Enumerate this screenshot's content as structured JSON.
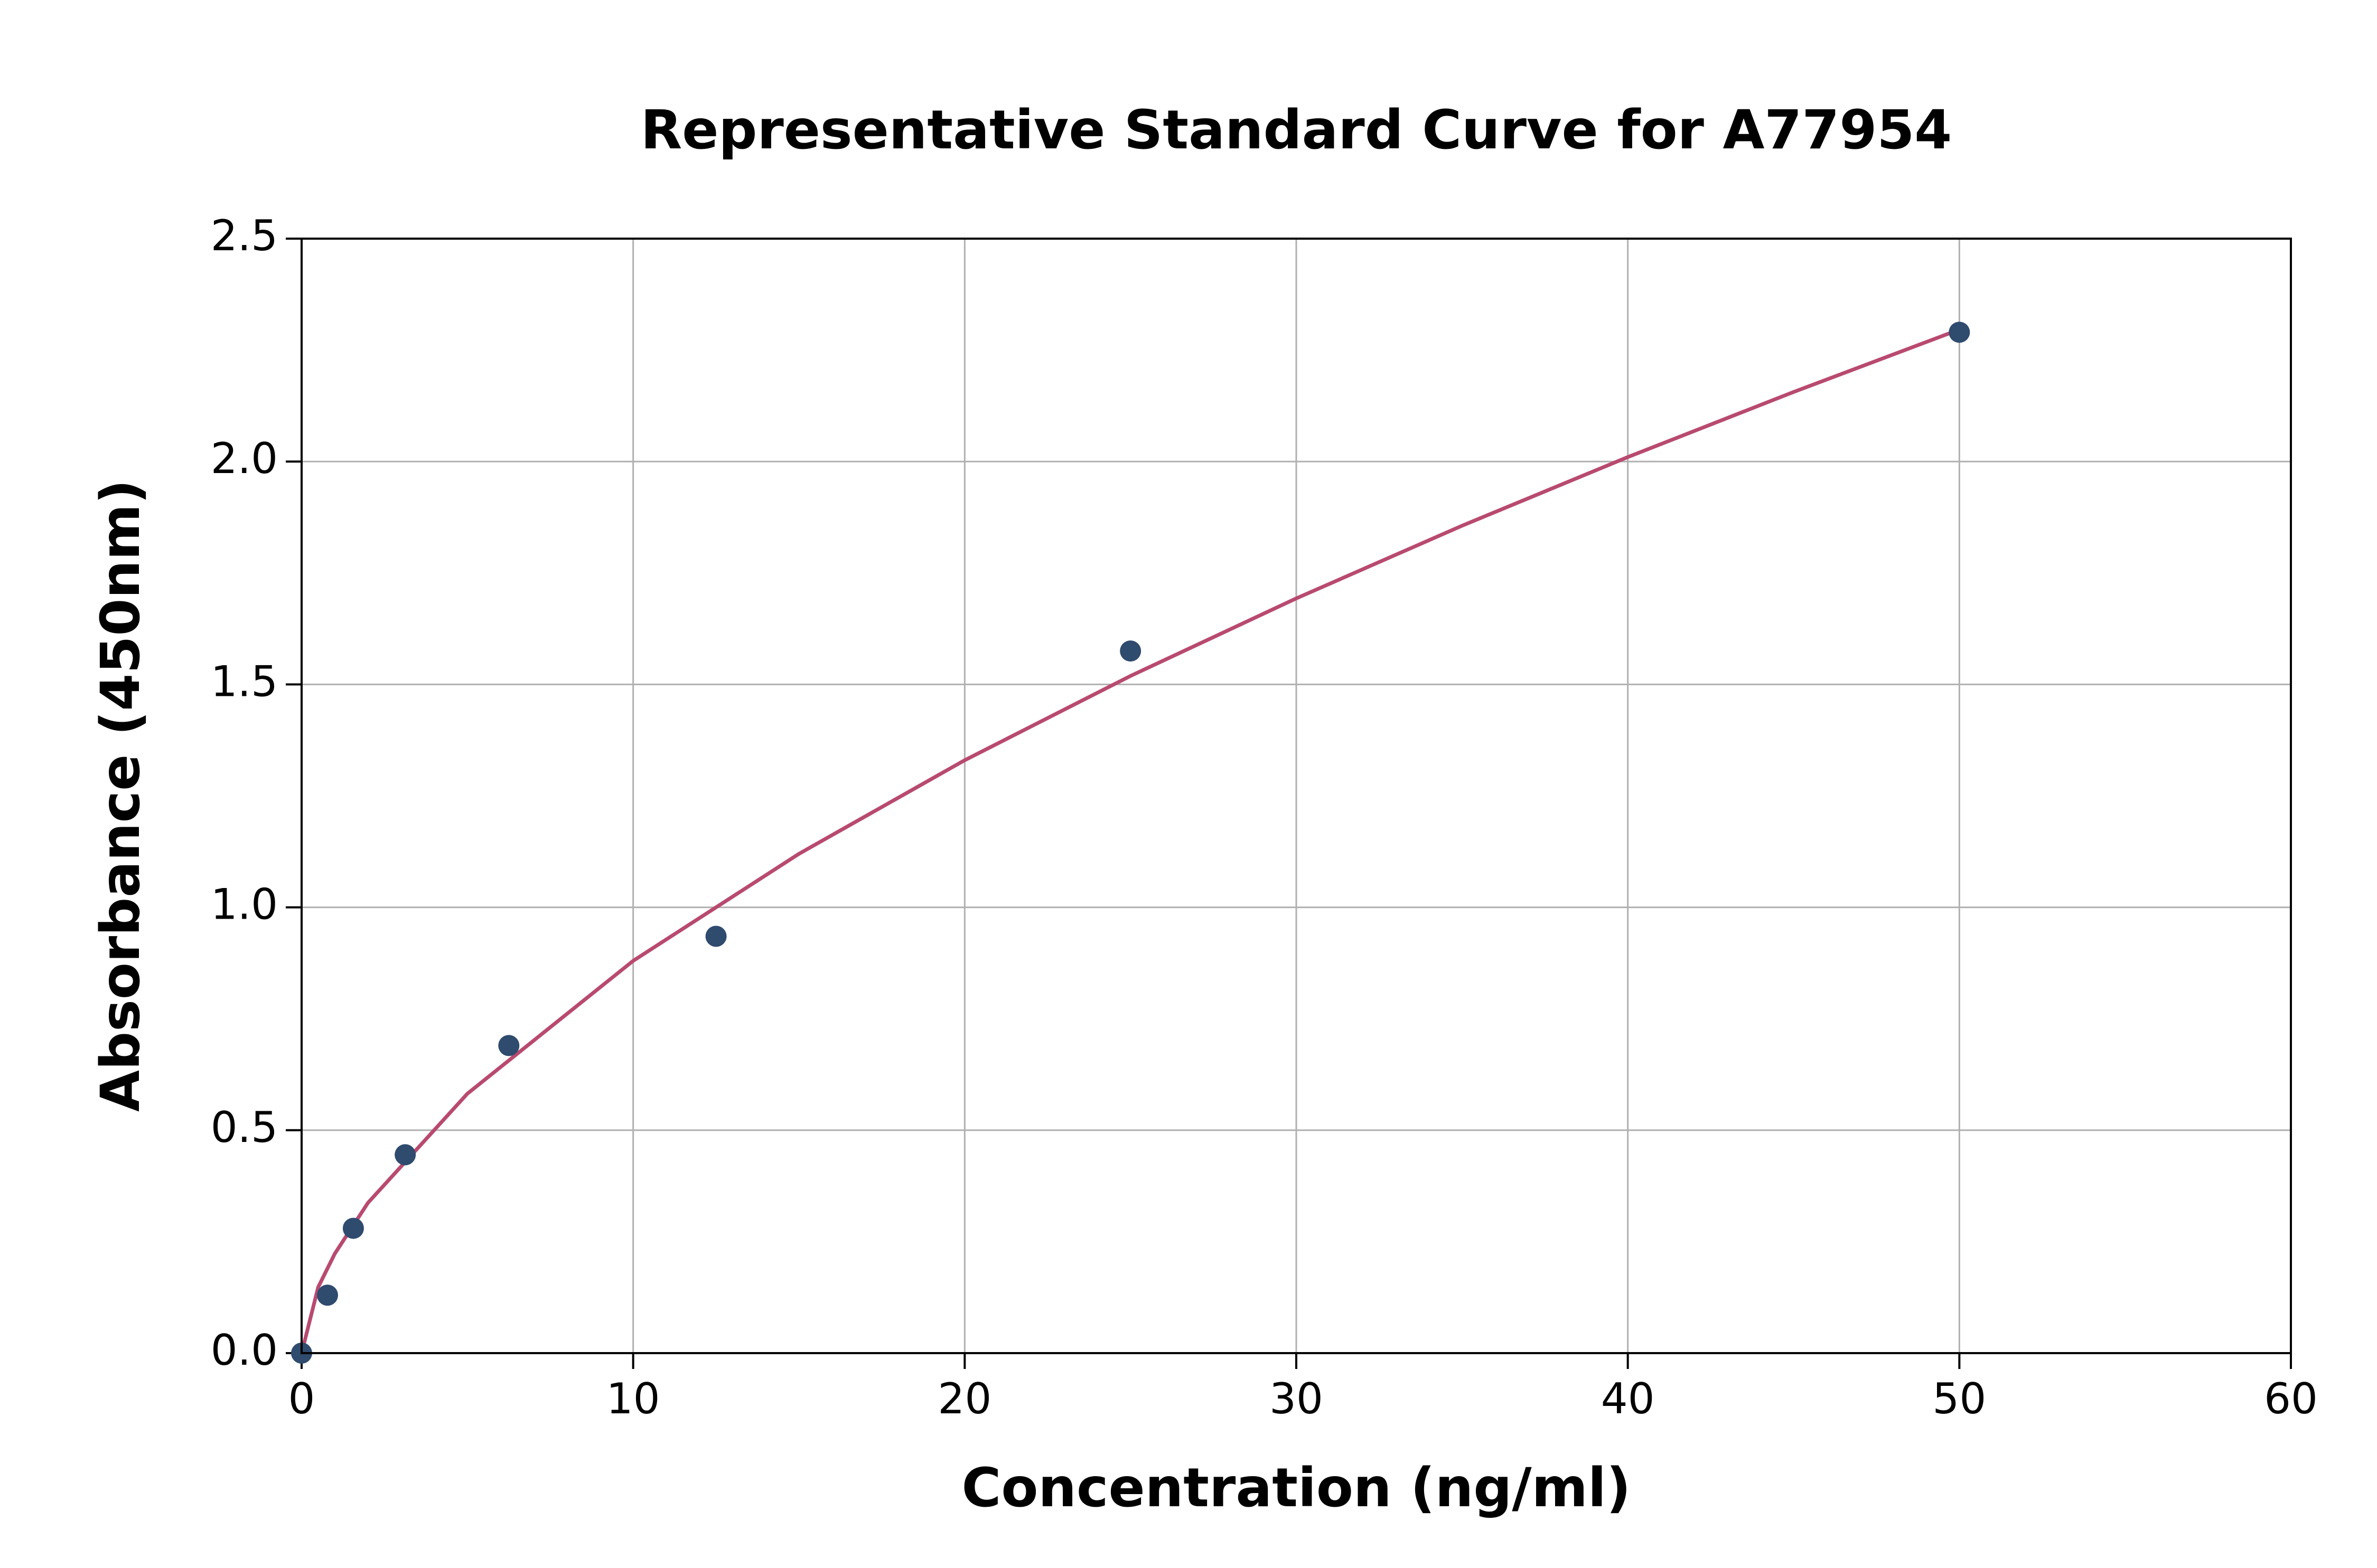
{
  "chart_data": {
    "type": "scatter",
    "title": "Representative Standard Curve for A77954",
    "x_label": "Concentration (ng/ml)",
    "y_label": "Absorbance (450nm)",
    "series": [
      {
        "type": "scatter",
        "color": "#2f4b6e",
        "x": [
          0,
          0.78,
          1.56,
          3.125,
          6.25,
          12.5,
          25,
          50
        ],
        "values": [
          0,
          0.13,
          0.28,
          0.445,
          0.69,
          0.935,
          1.575,
          2.29
        ]
      },
      {
        "type": "line",
        "color": "#b84a70",
        "x": [
          0,
          0.5,
          1,
          2,
          5,
          10,
          15,
          20,
          25,
          30,
          35,
          40,
          45,
          50
        ],
        "values": [
          0,
          0.148,
          0.223,
          0.337,
          0.582,
          0.88,
          1.12,
          1.33,
          1.519,
          1.693,
          1.856,
          2.01,
          2.156,
          2.296
        ]
      }
    ],
    "xlim": [
      0,
      60
    ],
    "xticks": [
      0,
      10,
      20,
      30,
      40,
      50,
      60
    ],
    "ylim": [
      0,
      2.5
    ],
    "yticks": [
      {
        "value": 0,
        "label": "0.0"
      },
      {
        "value": 0.5,
        "label": "0.5"
      },
      {
        "value": 1,
        "label": "1.0"
      },
      {
        "value": 1.5,
        "label": "1.5"
      },
      {
        "value": 2,
        "label": "2.0"
      },
      {
        "value": 2.5,
        "label": "2.5"
      }
    ],
    "grid": true
  }
}
